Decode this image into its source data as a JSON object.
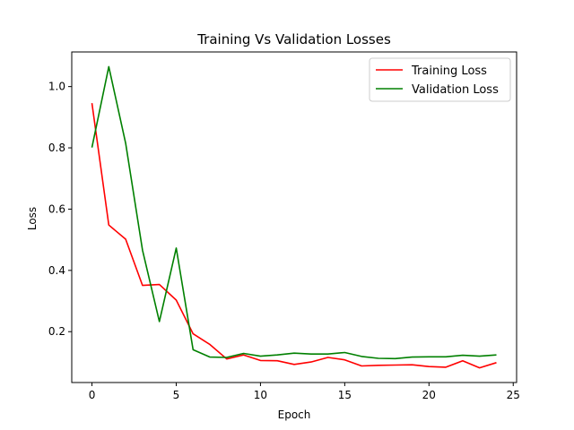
{
  "chart_data": {
    "type": "line",
    "title": "Training Vs Validation Losses",
    "xlabel": "Epoch",
    "ylabel": "Loss",
    "xlim": [
      -1.2,
      25.2
    ],
    "ylim": [
      0.034,
      1.113
    ],
    "xticks": [
      0,
      5,
      10,
      15,
      20,
      25
    ],
    "xtick_labels": [
      "0",
      "5",
      "10",
      "15",
      "20",
      "25"
    ],
    "yticks": [
      0.2,
      0.4,
      0.6,
      0.8,
      1.0
    ],
    "ytick_labels": [
      "0.2",
      "0.4",
      "0.6",
      "0.8",
      "1.0"
    ],
    "grid": false,
    "legend_position": "top-right",
    "x": [
      0,
      1,
      2,
      3,
      4,
      5,
      6,
      7,
      8,
      9,
      10,
      11,
      12,
      13,
      14,
      15,
      16,
      17,
      18,
      19,
      20,
      21,
      22,
      23,
      24
    ],
    "series": [
      {
        "name": "Training Loss",
        "color": "#ff0000",
        "values": [
          0.946,
          0.548,
          0.502,
          0.351,
          0.354,
          0.303,
          0.193,
          0.158,
          0.111,
          0.124,
          0.106,
          0.105,
          0.093,
          0.101,
          0.116,
          0.108,
          0.088,
          0.09,
          0.091,
          0.092,
          0.086,
          0.084,
          0.105,
          0.082,
          0.099
        ]
      },
      {
        "name": "Validation Loss",
        "color": "#008000",
        "values": [
          0.801,
          1.065,
          0.815,
          0.466,
          0.233,
          0.473,
          0.141,
          0.117,
          0.116,
          0.129,
          0.12,
          0.124,
          0.13,
          0.127,
          0.127,
          0.132,
          0.119,
          0.113,
          0.112,
          0.117,
          0.118,
          0.118,
          0.123,
          0.12,
          0.124
        ]
      }
    ]
  }
}
